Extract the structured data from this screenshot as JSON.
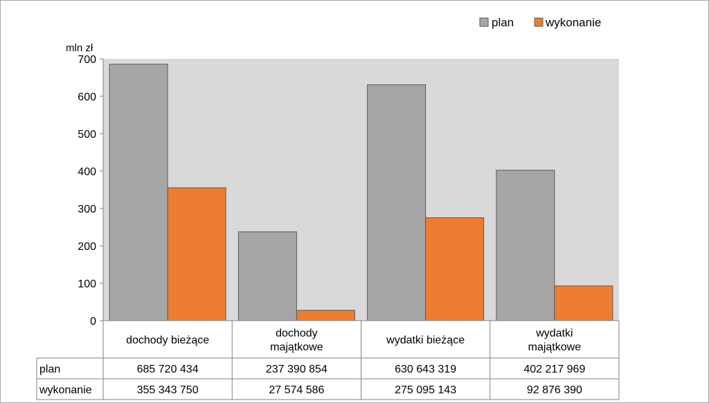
{
  "chart_data": {
    "type": "bar",
    "ylabel": "mln zł",
    "ylim": [
      0,
      700
    ],
    "yticks": [
      0,
      100,
      200,
      300,
      400,
      500,
      600,
      700
    ],
    "grid": false,
    "legend_position": "top-right",
    "categories": [
      [
        "dochody bieżące"
      ],
      [
        "dochody",
        "majątkowe"
      ],
      [
        "wydatki bieżące"
      ],
      [
        "wydatki",
        "majątkowe"
      ]
    ],
    "series": [
      {
        "name": "plan",
        "color": "#a6a6a6",
        "values": [
          685.72,
          237.39,
          630.64,
          402.22
        ],
        "labels": [
          "685 720 434",
          "237 390 854",
          "630 643 319",
          "402 217 969"
        ]
      },
      {
        "name": "wykonanie",
        "color": "#ed7d31",
        "values": [
          355.34,
          27.57,
          275.1,
          92.88
        ],
        "labels": [
          "355 343 750",
          "27 574 586",
          "275 095 143",
          "92 876 390"
        ]
      }
    ]
  }
}
